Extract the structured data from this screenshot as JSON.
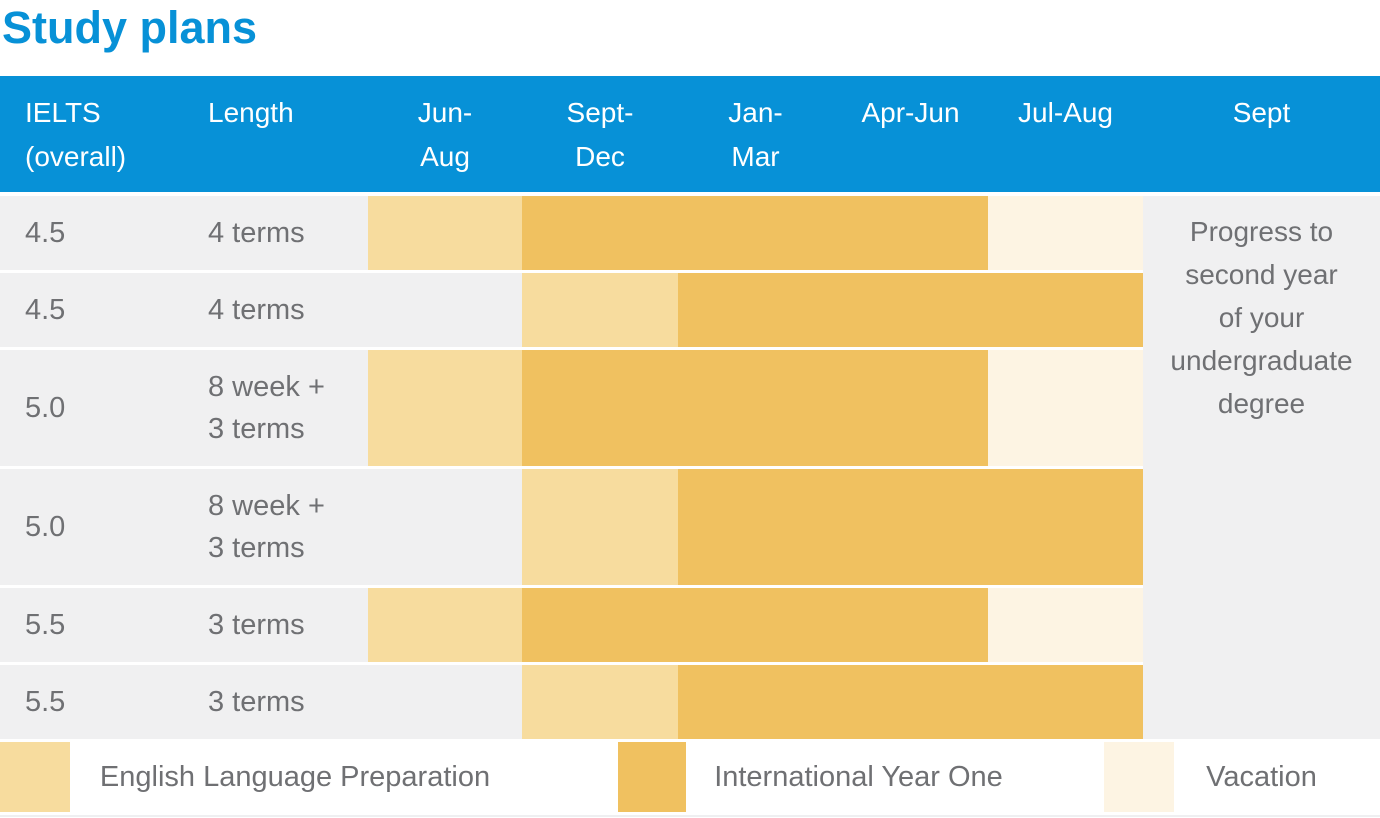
{
  "title": "Study plans",
  "colors": {
    "accent_blue": "#0791D7",
    "header_text": "#FFFFFF",
    "body_text": "#6F7073",
    "row_background": "#F0F0F1",
    "english_language_preparation": "#F7DC9E",
    "international_year_one": "#F0C160",
    "vacation": "#FDF4E3"
  },
  "chart_data": {
    "type": "gantt",
    "title": "Study plans",
    "columns": [
      {
        "id": "ielts",
        "label_lines": [
          "IELTS",
          "(overall)"
        ]
      },
      {
        "id": "length",
        "label_lines": [
          "Length"
        ]
      },
      {
        "id": "jun_aug",
        "label_lines": [
          "Jun-",
          "Aug"
        ]
      },
      {
        "id": "sept_dec",
        "label_lines": [
          "Sept-",
          "Dec"
        ]
      },
      {
        "id": "jan_mar",
        "label_lines": [
          "Jan-",
          "Mar"
        ]
      },
      {
        "id": "apr_jun",
        "label_lines": [
          "Apr-Jun"
        ]
      },
      {
        "id": "jul_aug",
        "label_lines": [
          "Jul-Aug"
        ]
      },
      {
        "id": "sept",
        "label_lines": [
          "Sept"
        ]
      }
    ],
    "rows": [
      {
        "ielts": "4.5",
        "length_lines": [
          "4 terms"
        ],
        "segments": [
          {
            "program": "english_language_preparation",
            "from": "jun_aug",
            "to": "jun_aug"
          },
          {
            "program": "international_year_one",
            "from": "sept_dec",
            "to": "apr_jun"
          },
          {
            "program": "vacation",
            "from": "jul_aug",
            "to": "jul_aug"
          }
        ]
      },
      {
        "ielts": "4.5",
        "length_lines": [
          "4 terms"
        ],
        "segments": [
          {
            "program": "english_language_preparation",
            "from": "sept_dec",
            "to": "sept_dec"
          },
          {
            "program": "international_year_one",
            "from": "jan_mar",
            "to": "jul_aug"
          }
        ]
      },
      {
        "ielts": "5.0",
        "length_lines": [
          "8 week +",
          "3 terms"
        ],
        "segments": [
          {
            "program": "english_language_preparation",
            "from": "jun_aug",
            "to": "jun_aug"
          },
          {
            "program": "international_year_one",
            "from": "sept_dec",
            "to": "apr_jun"
          },
          {
            "program": "vacation",
            "from": "jul_aug",
            "to": "jul_aug"
          }
        ]
      },
      {
        "ielts": "5.0",
        "length_lines": [
          "8 week +",
          "3 terms"
        ],
        "segments": [
          {
            "program": "english_language_preparation",
            "from": "sept_dec",
            "to": "sept_dec"
          },
          {
            "program": "international_year_one",
            "from": "jan_mar",
            "to": "jul_aug"
          }
        ]
      },
      {
        "ielts": "5.5",
        "length_lines": [
          "3 terms"
        ],
        "segments": [
          {
            "program": "english_language_preparation",
            "from": "jun_aug",
            "to": "jun_aug"
          },
          {
            "program": "international_year_one",
            "from": "sept_dec",
            "to": "apr_jun"
          },
          {
            "program": "vacation",
            "from": "jul_aug",
            "to": "jul_aug"
          }
        ]
      },
      {
        "ielts": "5.5",
        "length_lines": [
          "3 terms"
        ],
        "segments": [
          {
            "program": "english_language_preparation",
            "from": "sept_dec",
            "to": "sept_dec"
          },
          {
            "program": "international_year_one",
            "from": "jan_mar",
            "to": "jul_aug"
          }
        ]
      }
    ],
    "sept_note_lines": [
      "Progress to",
      "second year",
      "of your",
      "undergraduate",
      "degree"
    ],
    "legend": [
      {
        "id": "english_language_preparation",
        "label": "English Language Preparation"
      },
      {
        "id": "international_year_one",
        "label": "International Year One"
      },
      {
        "id": "vacation",
        "label": "Vacation"
      }
    ]
  }
}
